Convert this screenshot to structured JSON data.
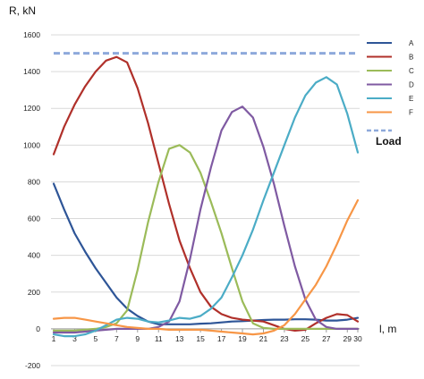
{
  "chart_data": {
    "type": "line",
    "ylabel": "R, kN",
    "xlabel": "l, m",
    "ylim": [
      -200,
      1600
    ],
    "xlim": [
      1,
      30
    ],
    "yticks": [
      -200,
      0,
      200,
      400,
      600,
      800,
      1000,
      1200,
      1400,
      1600
    ],
    "xticks": [
      1,
      3,
      5,
      7,
      9,
      11,
      13,
      15,
      17,
      19,
      21,
      23,
      25,
      27,
      29,
      30
    ],
    "grid": "horizontal",
    "legend_position": "right",
    "x": [
      1,
      2,
      3,
      4,
      5,
      6,
      7,
      8,
      9,
      10,
      11,
      12,
      13,
      14,
      15,
      16,
      17,
      18,
      19,
      20,
      21,
      22,
      23,
      24,
      25,
      26,
      27,
      28,
      29,
      30
    ],
    "series": [
      {
        "name": "A",
        "color": "#2e5597",
        "dash": false,
        "values": [
          790,
          650,
          520,
          420,
          330,
          250,
          170,
          110,
          70,
          40,
          25,
          25,
          25,
          25,
          28,
          30,
          35,
          40,
          42,
          45,
          48,
          50,
          50,
          52,
          52,
          50,
          45,
          45,
          50,
          60
        ]
      },
      {
        "name": "B",
        "color": "#b0302a",
        "dash": false,
        "values": [
          950,
          1100,
          1220,
          1320,
          1400,
          1460,
          1480,
          1450,
          1310,
          1120,
          900,
          680,
          480,
          330,
          200,
          120,
          80,
          60,
          50,
          45,
          40,
          20,
          0,
          -10,
          -5,
          30,
          60,
          80,
          75,
          40
        ]
      },
      {
        "name": "C",
        "color": "#9bbb59",
        "dash": false,
        "values": [
          -10,
          -10,
          -10,
          -5,
          0,
          10,
          30,
          100,
          320,
          580,
          800,
          980,
          1000,
          960,
          850,
          690,
          520,
          330,
          150,
          30,
          5,
          0,
          0,
          0,
          0,
          0,
          0,
          0,
          0,
          0
        ]
      },
      {
        "name": "D",
        "color": "#7f5aa2",
        "dash": false,
        "values": [
          -20,
          -20,
          -20,
          -15,
          -10,
          -5,
          0,
          0,
          0,
          0,
          10,
          40,
          150,
          380,
          650,
          880,
          1080,
          1180,
          1210,
          1150,
          990,
          790,
          560,
          340,
          160,
          50,
          10,
          0,
          0,
          0
        ]
      },
      {
        "name": "E",
        "color": "#4bacc6",
        "dash": false,
        "values": [
          -30,
          -40,
          -40,
          -30,
          -10,
          20,
          50,
          60,
          55,
          40,
          35,
          45,
          60,
          55,
          70,
          110,
          170,
          280,
          400,
          540,
          700,
          850,
          1000,
          1150,
          1270,
          1340,
          1370,
          1330,
          1170,
          960
        ]
      },
      {
        "name": "F",
        "color": "#f79646",
        "dash": false,
        "values": [
          55,
          60,
          60,
          50,
          40,
          30,
          20,
          10,
          5,
          0,
          0,
          -5,
          -5,
          -5,
          -5,
          -10,
          -15,
          -20,
          -25,
          -30,
          -25,
          -10,
          20,
          80,
          160,
          240,
          340,
          460,
          590,
          700
        ]
      },
      {
        "name": "Load",
        "color": "#8ea9db",
        "dash": true,
        "values": [
          1500,
          1500,
          1500,
          1500,
          1500,
          1500,
          1500,
          1500,
          1500,
          1500,
          1500,
          1500,
          1500,
          1500,
          1500,
          1500,
          1500,
          1500,
          1500,
          1500,
          1500,
          1500,
          1500,
          1500,
          1500,
          1500,
          1500,
          1500,
          1500,
          1500
        ]
      }
    ]
  }
}
